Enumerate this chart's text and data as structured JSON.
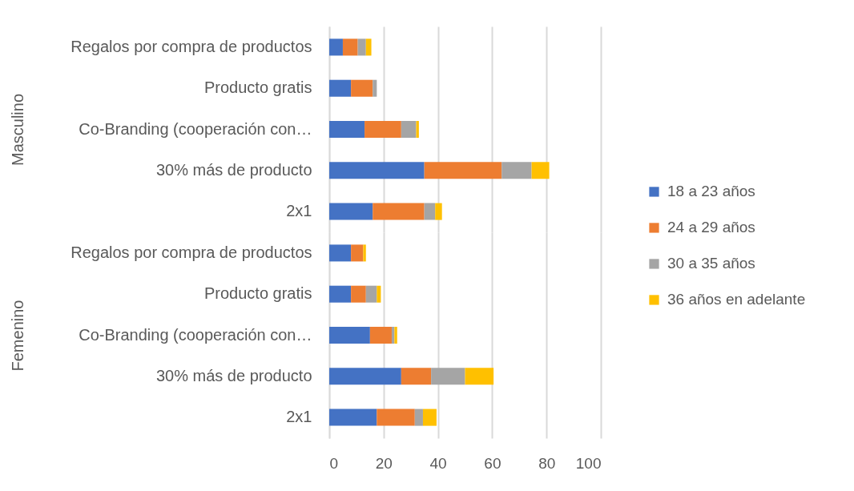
{
  "chart_data": [
    {
      "type": "bar",
      "orientation": "horizontal",
      "stacked": true,
      "ylabel": "Masculino",
      "categories": [
        "Regalos por compra de productos",
        "Producto gratis",
        "Co-Branding (cooperación con…",
        "30% más de producto",
        "2x1"
      ],
      "series": [
        {
          "name": "18 a 23 años",
          "color": "#4472c4",
          "values": [
            5,
            8,
            13,
            35,
            16
          ]
        },
        {
          "name": "24 a 29 años",
          "color": "#ed7d31",
          "values": [
            5.5,
            8,
            13.5,
            28.5,
            19
          ]
        },
        {
          "name": "30 a 35 años",
          "color": "#a5a5a5",
          "values": [
            3,
            1.5,
            5.5,
            11,
            4
          ]
        },
        {
          "name": "36 años en adelante",
          "color": "#ffc000",
          "values": [
            2,
            null,
            1,
            6.5,
            2.5
          ]
        }
      ],
      "xlim": [
        0,
        100
      ],
      "xticks": [
        0,
        20,
        40,
        60,
        80,
        100
      ],
      "grid": "x",
      "legend": "right",
      "tick_labels": "y"
    },
    {
      "type": "bar",
      "orientation": "horizontal",
      "stacked": true,
      "ylabel": "Femenino",
      "categories": [
        "Regalos por compra de productos",
        "Producto gratis",
        "Co-Branding (cooperación con…",
        "30% más de producto",
        "2x1"
      ],
      "series": [
        {
          "name": "18 a 23 años",
          "color": "#4472c4",
          "values": [
            8,
            8,
            15,
            26.5,
            17.5
          ]
        },
        {
          "name": "24 a 29 años",
          "color": "#ed7d31",
          "values": [
            4.5,
            5.5,
            8,
            11,
            14
          ]
        },
        {
          "name": "30 a 35 años",
          "color": "#a5a5a5",
          "values": [
            null,
            4,
            1,
            12.5,
            3
          ]
        },
        {
          "name": "36 años en adelante",
          "color": "#ffc000",
          "values": [
            1,
            1.5,
            1,
            10.5,
            5
          ]
        }
      ],
      "xlim": [
        0,
        100
      ],
      "xticks": [
        0,
        20,
        40,
        60,
        80,
        100
      ],
      "grid": "x",
      "legend": "right"
    }
  ]
}
